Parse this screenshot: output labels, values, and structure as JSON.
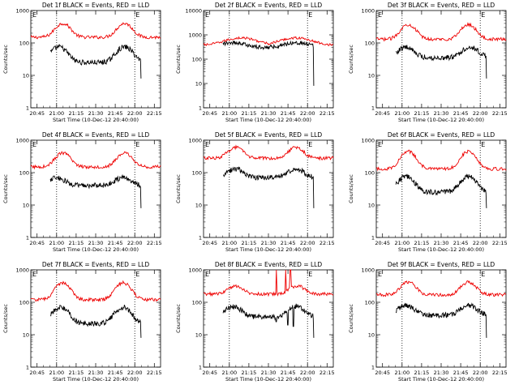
{
  "figure": {
    "background": "#ffffff",
    "event_color": "#000000",
    "lld_color": "#ee0000"
  },
  "chart_data": [
    {
      "type": "line",
      "title": "Det 1f BLACK = Events, RED = LLD",
      "xlabel": "Start Time (10-Dec-12 20:40:00)",
      "ylabel": "Counts/sec",
      "yscale": "log",
      "ylim": [
        1,
        1000
      ],
      "yticks": [
        "1",
        "10",
        "100",
        "1000"
      ],
      "xlim": [
        20.67,
        22.33
      ],
      "xticks": [
        "20:45",
        "21:00",
        "21:15",
        "21:30",
        "21:45",
        "22:00",
        "22:15"
      ],
      "vlines": [
        21.0,
        22.0
      ],
      "markers": [
        "E",
        "E"
      ],
      "series": [
        {
          "name": "LLD",
          "start": 20.67,
          "end": 22.33,
          "low": 150,
          "high": 400,
          "p1": 21.08,
          "p2": 21.87,
          "w": 0.12
        },
        {
          "name": "Events",
          "start": 20.92,
          "end": 22.08,
          "low": 25,
          "high": 75,
          "p1": 21.03,
          "p2": 21.87,
          "w": 0.13
        }
      ]
    },
    {
      "type": "line",
      "title": "Det 2f BLACK = Events, RED = LLD",
      "xlabel": "Start Time (10-Dec-12 20:40:00)",
      "ylabel": "Counts/sec",
      "yscale": "log",
      "ylim": [
        1,
        10000
      ],
      "yticks": [
        "1",
        "10",
        "100",
        "1000",
        "10000"
      ],
      "xlim": [
        20.67,
        22.33
      ],
      "xticks": [
        "20:45",
        "21:00",
        "21:15",
        "21:30",
        "21:45",
        "22:00",
        "22:15"
      ],
      "vlines": [
        21.0,
        22.0
      ],
      "markers": [
        "E",
        "E"
      ],
      "series": [
        {
          "name": "LLD",
          "start": 20.67,
          "end": 22.33,
          "low": 380,
          "high": 750,
          "p1": 21.15,
          "p2": 21.85,
          "w": 0.25
        },
        {
          "name": "Events",
          "start": 20.92,
          "end": 22.08,
          "low": 300,
          "high": 480,
          "p1": 21.05,
          "p2": 21.85,
          "w": 0.2
        }
      ]
    },
    {
      "type": "line",
      "title": "Det 3f BLACK = Events, RED = LLD",
      "xlabel": "Start Time (10-Dec-12 20:40:00)",
      "ylabel": "Counts/sec",
      "yscale": "log",
      "ylim": [
        1,
        1000
      ],
      "yticks": [
        "1",
        "10",
        "100",
        "1000"
      ],
      "xlim": [
        20.67,
        22.33
      ],
      "xticks": [
        "20:45",
        "21:00",
        "21:15",
        "21:30",
        "21:45",
        "22:00",
        "22:15"
      ],
      "vlines": [
        21.0,
        22.0
      ],
      "markers": [
        "E",
        "E"
      ],
      "series": [
        {
          "name": "LLD",
          "start": 20.67,
          "end": 22.33,
          "low": 130,
          "high": 370,
          "p1": 21.08,
          "p2": 21.85,
          "w": 0.12
        },
        {
          "name": "Events",
          "start": 20.92,
          "end": 22.08,
          "low": 35,
          "high": 75,
          "p1": 21.05,
          "p2": 21.87,
          "w": 0.13
        }
      ]
    },
    {
      "type": "line",
      "title": "Det 4f BLACK = Events, RED = LLD",
      "xlabel": "Start Time (10-Dec-12 20:40:00)",
      "ylabel": "Counts/sec",
      "yscale": "log",
      "ylim": [
        1,
        1000
      ],
      "yticks": [
        "1",
        "10",
        "100",
        "1000"
      ],
      "xlim": [
        20.67,
        22.33
      ],
      "xticks": [
        "20:45",
        "21:00",
        "21:15",
        "21:30",
        "21:45",
        "22:00",
        "22:15"
      ],
      "vlines": [
        21.0,
        22.0
      ],
      "markers": [
        "E",
        "E"
      ],
      "series": [
        {
          "name": "LLD",
          "start": 20.67,
          "end": 22.33,
          "low": 150,
          "high": 400,
          "p1": 21.08,
          "p2": 21.87,
          "w": 0.12
        },
        {
          "name": "Events",
          "start": 20.92,
          "end": 22.08,
          "low": 40,
          "high": 70,
          "p1": 21.0,
          "p2": 21.85,
          "w": 0.13
        }
      ]
    },
    {
      "type": "line",
      "title": "Det 5f BLACK = Events, RED = LLD",
      "xlabel": "Start Time (10-Dec-12 20:40:00)",
      "ylabel": "Counts/sec",
      "yscale": "log",
      "ylim": [
        1,
        1000
      ],
      "yticks": [
        "1",
        "10",
        "100",
        "1000"
      ],
      "xlim": [
        20.67,
        22.33
      ],
      "xticks": [
        "20:45",
        "21:00",
        "21:15",
        "21:30",
        "21:45",
        "22:00",
        "22:15"
      ],
      "vlines": [
        21.0,
        22.0
      ],
      "markers": [
        "E",
        "E"
      ],
      "series": [
        {
          "name": "LLD",
          "start": 20.67,
          "end": 22.33,
          "low": 280,
          "high": 600,
          "p1": 21.08,
          "p2": 21.85,
          "w": 0.12
        },
        {
          "name": "Events",
          "start": 20.92,
          "end": 22.08,
          "low": 70,
          "high": 130,
          "p1": 21.08,
          "p2": 21.85,
          "w": 0.13
        }
      ]
    },
    {
      "type": "line",
      "title": "Det 6f BLACK = Events, RED = LLD",
      "xlabel": "Start Time (10-Dec-12 20:40:00)",
      "ylabel": "Counts/sec",
      "yscale": "log",
      "ylim": [
        1,
        1000
      ],
      "yticks": [
        "1",
        "10",
        "100",
        "1000"
      ],
      "xlim": [
        20.67,
        22.33
      ],
      "xticks": [
        "20:45",
        "21:00",
        "21:15",
        "21:30",
        "21:45",
        "22:00",
        "22:15"
      ],
      "vlines": [
        21.0,
        22.0
      ],
      "markers": [
        "E",
        "E"
      ],
      "series": [
        {
          "name": "LLD",
          "start": 20.67,
          "end": 22.33,
          "low": 130,
          "high": 450,
          "p1": 21.08,
          "p2": 21.85,
          "w": 0.12
        },
        {
          "name": "Events",
          "start": 20.92,
          "end": 22.08,
          "low": 25,
          "high": 75,
          "p1": 21.05,
          "p2": 21.85,
          "w": 0.13
        }
      ]
    },
    {
      "type": "line",
      "title": "Det 7f BLACK = Events, RED = LLD",
      "xlabel": "Start Time (10-Dec-12 20:40:00)",
      "ylabel": "Counts/sec",
      "yscale": "log",
      "ylim": [
        1,
        1000
      ],
      "yticks": [
        "1",
        "10",
        "100",
        "1000"
      ],
      "xlim": [
        20.67,
        22.33
      ],
      "xticks": [
        "20:45",
        "21:00",
        "21:15",
        "21:30",
        "21:45",
        "22:00",
        "22:15"
      ],
      "vlines": [
        21.0,
        22.0
      ],
      "markers": [
        "E",
        "E"
      ],
      "series": [
        {
          "name": "LLD",
          "start": 20.67,
          "end": 22.33,
          "low": 120,
          "high": 400,
          "p1": 21.08,
          "p2": 21.85,
          "w": 0.12
        },
        {
          "name": "Events",
          "start": 20.92,
          "end": 22.08,
          "low": 22,
          "high": 70,
          "p1": 21.05,
          "p2": 21.85,
          "w": 0.13
        }
      ]
    },
    {
      "type": "line",
      "title": "Det 8f BLACK = Events, RED = LLD",
      "xlabel": "Start Time (10-Dec-12 20:40:00)",
      "ylabel": "Counts/sec",
      "yscale": "log",
      "ylim": [
        1,
        1000
      ],
      "yticks": [
        "1",
        "10",
        "100",
        "1000"
      ],
      "xlim": [
        20.67,
        22.33
      ],
      "xticks": [
        "20:45",
        "21:00",
        "21:15",
        "21:30",
        "21:45",
        "22:00",
        "22:15"
      ],
      "vlines": [
        21.0,
        22.0
      ],
      "markers": [
        "E",
        "E"
      ],
      "series": [
        {
          "name": "LLD",
          "start": 20.67,
          "end": 22.33,
          "low": 180,
          "high": 320,
          "p1": 21.08,
          "p2": 21.87,
          "w": 0.12,
          "spikes": [
            {
              "x": 21.6,
              "peak": 1000
            },
            {
              "x": 21.72,
              "peak": 1000
            },
            {
              "x": 21.78,
              "peak": 1000
            }
          ]
        },
        {
          "name": "Events",
          "start": 20.92,
          "end": 22.08,
          "low": 35,
          "high": 75,
          "p1": 21.05,
          "p2": 21.85,
          "w": 0.13,
          "dips": [
            {
              "x": 21.6,
              "low": 25
            },
            {
              "x": 21.75,
              "low": 20
            },
            {
              "x": 21.82,
              "low": 18
            }
          ]
        }
      ]
    },
    {
      "type": "line",
      "title": "Det 9f BLACK = Events, RED = LLD",
      "xlabel": "Start Time (10-Dec-12 20:40:00)",
      "ylabel": "Counts/sec",
      "yscale": "log",
      "ylim": [
        1,
        1000
      ],
      "yticks": [
        "1",
        "10",
        "100",
        "1000"
      ],
      "xlim": [
        20.67,
        22.33
      ],
      "xticks": [
        "20:45",
        "21:00",
        "21:15",
        "21:30",
        "21:45",
        "22:00",
        "22:15"
      ],
      "vlines": [
        21.0,
        22.0
      ],
      "markers": [
        "E",
        "E"
      ],
      "series": [
        {
          "name": "LLD",
          "start": 20.67,
          "end": 22.33,
          "low": 170,
          "high": 420,
          "p1": 21.08,
          "p2": 21.85,
          "w": 0.12
        },
        {
          "name": "Events",
          "start": 20.92,
          "end": 22.08,
          "low": 40,
          "high": 80,
          "p1": 21.05,
          "p2": 21.85,
          "w": 0.13
        }
      ]
    }
  ]
}
